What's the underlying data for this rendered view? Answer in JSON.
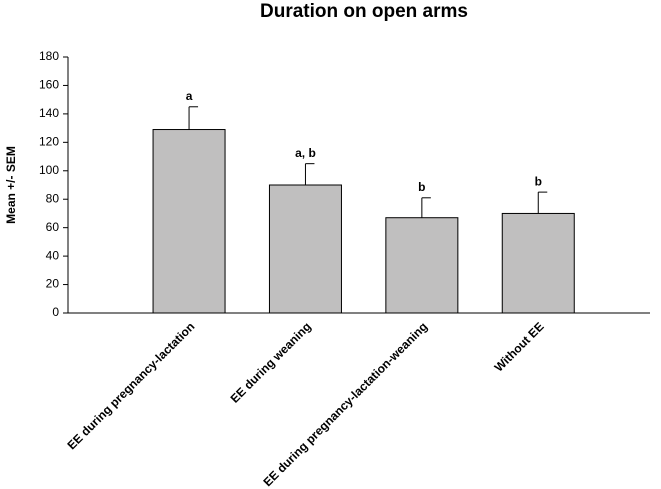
{
  "chart_data": {
    "type": "bar",
    "title": "Duration on open arms",
    "y_label": "Mean +/- SEM",
    "categories": [
      "EE during pregnancy-lactation",
      "EE during weaning",
      "EE during pregnancy-lactation-weaning",
      "Without EE"
    ],
    "values": [
      129,
      90,
      67,
      70
    ],
    "errors": [
      16,
      15,
      14,
      15
    ],
    "annotations": [
      "a",
      "a, b",
      "b",
      "b"
    ],
    "color": "#c0bfbf",
    "ylim": [
      0,
      180
    ],
    "yticks": [
      0,
      20,
      40,
      60,
      80,
      100,
      120,
      140,
      160,
      180
    ]
  }
}
